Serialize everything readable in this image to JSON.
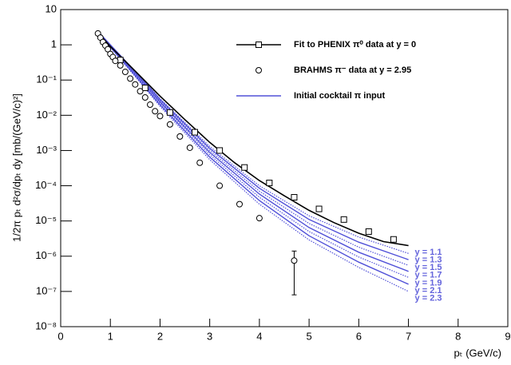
{
  "chart_data": {
    "type": "line",
    "xlabel": "pₜ (GeV/c)",
    "ylabel": "1/2π pₜ d²σ/dpₜ dy  [mb/(GeV/c)²]",
    "xlim": [
      0,
      9
    ],
    "xticks": [
      0,
      1,
      2,
      3,
      4,
      5,
      6,
      7,
      8,
      9
    ],
    "ylim": [
      10,
      1e-08
    ],
    "yscale": "log",
    "yticks": [
      {
        "value": 10,
        "label": "10"
      },
      {
        "value": 1,
        "label": "1"
      },
      {
        "value": 0.1,
        "label": "10⁻¹"
      },
      {
        "value": 0.01,
        "label": "10⁻²"
      },
      {
        "value": 0.001,
        "label": "10⁻³"
      },
      {
        "value": 0.0001,
        "label": "10⁻⁴"
      },
      {
        "value": 1e-05,
        "label": "10⁻⁵"
      },
      {
        "value": 1e-06,
        "label": "10⁻⁶"
      },
      {
        "value": 1e-07,
        "label": "10⁻⁷"
      },
      {
        "value": 1e-08,
        "label": "10⁻⁸"
      }
    ],
    "series": [
      {
        "name": "Fit to PHENIX π⁰ data at y = 0",
        "color": "#000000",
        "marker": "square",
        "x": [
          0.75,
          1,
          1.5,
          2,
          2.5,
          3,
          3.5,
          4,
          4.5,
          5,
          5.5,
          6,
          6.5,
          7
        ],
        "values": [
          2.2,
          0.9,
          0.18,
          0.035,
          0.0075,
          0.0017,
          0.00045,
          0.00014,
          5.2e-05,
          2e-05,
          9e-06,
          4.5e-06,
          2.6e-06,
          2e-06
        ],
        "points": {
          "x": [
            1.2,
            1.7,
            2.2,
            2.7,
            3.2,
            3.7,
            4.2,
            4.7,
            5.2,
            5.7,
            6.2,
            6.7
          ],
          "values": [
            0.37,
            0.06,
            0.012,
            0.0033,
            0.001,
            0.00033,
            0.00012,
            4.7e-05,
            2.2e-05,
            1.1e-05,
            5e-06,
            3e-06
          ]
        }
      },
      {
        "name": "BRAHMS π⁻ data at y = 2.95",
        "color": "#000000",
        "marker": "circle",
        "x": [
          0.75,
          0.8,
          0.85,
          0.9,
          0.95,
          1.0,
          1.05,
          1.1,
          1.2,
          1.3,
          1.4,
          1.5,
          1.6,
          1.7,
          1.8,
          1.9,
          2.0,
          2.2,
          2.4,
          2.6,
          2.8,
          3.2,
          3.6,
          4.0,
          4.7
        ],
        "values": [
          2.1,
          1.6,
          1.2,
          0.95,
          0.75,
          0.55,
          0.45,
          0.35,
          0.26,
          0.17,
          0.11,
          0.075,
          0.048,
          0.032,
          0.02,
          0.013,
          0.0095,
          0.0055,
          0.0025,
          0.0012,
          0.00045,
          0.0001,
          3e-05,
          1.2e-05,
          7.5e-07
        ],
        "error_bar": {
          "x": 4.7,
          "low": 8e-08,
          "high": 1.4e-06
        }
      }
    ],
    "cocktail": {
      "name": "Initial cocktail π input",
      "color": "#5050d8",
      "x": [
        0.8,
        1,
        1.5,
        2,
        3,
        4,
        5,
        6,
        7
      ],
      "curves": [
        {
          "label": "y = 1.1",
          "style": "dotted",
          "values": [
            2.0,
            1.0,
            0.18,
            0.03,
            0.0013,
            0.0001,
            1.4e-05,
            3.5e-06,
            1.2e-06
          ]
        },
        {
          "label": "y = 1.3",
          "style": "solid",
          "values": [
            2.0,
            1.0,
            0.175,
            0.028,
            0.00115,
            8.5e-05,
            1.1e-05,
            2.5e-06,
            8e-07
          ]
        },
        {
          "label": "y = 1.5",
          "style": "dotted",
          "values": [
            1.9,
            0.95,
            0.165,
            0.026,
            0.001,
            7e-05,
            8.5e-06,
            1.8e-06,
            5.5e-07
          ]
        },
        {
          "label": "y = 1.7",
          "style": "solid",
          "values": [
            1.9,
            0.92,
            0.155,
            0.024,
            0.00088,
            5.8e-05,
            6.5e-06,
            1.3e-06,
            3.7e-07
          ]
        },
        {
          "label": "y = 1.9",
          "style": "dotted",
          "values": [
            1.8,
            0.9,
            0.145,
            0.022,
            0.00076,
            4.7e-05,
            5e-06,
            9.5e-07,
            2.5e-07
          ]
        },
        {
          "label": "y = 2.1",
          "style": "solid",
          "values": [
            1.8,
            0.87,
            0.135,
            0.02,
            0.00065,
            3.8e-05,
            3.8e-06,
            6.8e-07,
            1.6e-07
          ]
        },
        {
          "label": "y = 2.3",
          "style": "dotted",
          "values": [
            1.7,
            0.84,
            0.125,
            0.018,
            0.00055,
            3e-05,
            2.9e-06,
            4.8e-07,
            1e-07
          ]
        }
      ]
    }
  }
}
